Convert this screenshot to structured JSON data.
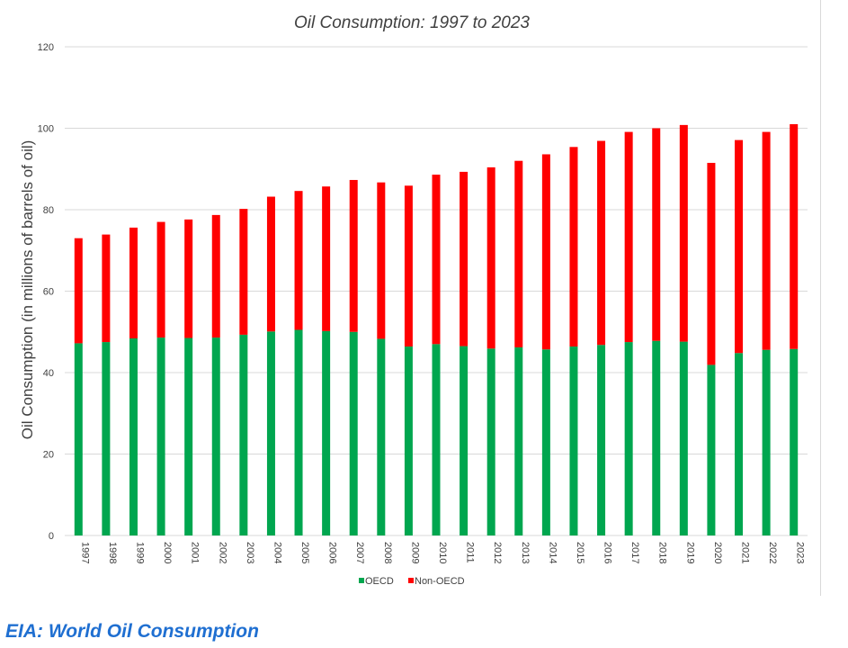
{
  "caption": "EIA: World Oil Consumption",
  "colors": {
    "oecd": "#00a64f",
    "non_oecd": "#ff0000",
    "caption": "#1f6fd1"
  },
  "chart_data": {
    "type": "bar",
    "stacked": true,
    "title": "Oil Consumption: 1997 to 2023",
    "xlabel": "",
    "ylabel": "Oil Consumption (in millions of barrels of oil)",
    "ylim": [
      0,
      120
    ],
    "yticks": [
      0,
      20,
      40,
      60,
      80,
      100,
      120
    ],
    "grid": true,
    "legend_position": "bottom",
    "categories": [
      "1997",
      "1998",
      "1999",
      "2000",
      "2001",
      "2002",
      "2003",
      "2004",
      "2005",
      "2006",
      "2007",
      "2008",
      "2009",
      "2010",
      "2011",
      "2012",
      "2013",
      "2014",
      "2015",
      "2016",
      "2017",
      "2018",
      "2019",
      "2020",
      "2021",
      "2022",
      "2023"
    ],
    "series": [
      {
        "name": "OECD",
        "color": "#00a64f",
        "values": [
          47.2,
          47.5,
          48.4,
          48.6,
          48.5,
          48.6,
          49.3,
          50.1,
          50.5,
          50.2,
          50.0,
          48.3,
          46.4,
          47.0,
          46.5,
          45.9,
          46.2,
          45.7,
          46.4,
          46.8,
          47.5,
          47.8,
          47.6,
          41.9,
          44.8,
          45.6,
          45.8
        ]
      },
      {
        "name": "Non-OECD",
        "color": "#ff0000",
        "values": [
          25.8,
          26.4,
          27.2,
          28.4,
          29.1,
          30.1,
          30.9,
          33.1,
          34.1,
          35.5,
          37.3,
          38.4,
          39.5,
          41.6,
          42.8,
          44.5,
          45.8,
          47.9,
          49.0,
          50.1,
          51.6,
          52.2,
          53.2,
          49.6,
          52.3,
          53.5,
          55.2
        ]
      }
    ]
  }
}
